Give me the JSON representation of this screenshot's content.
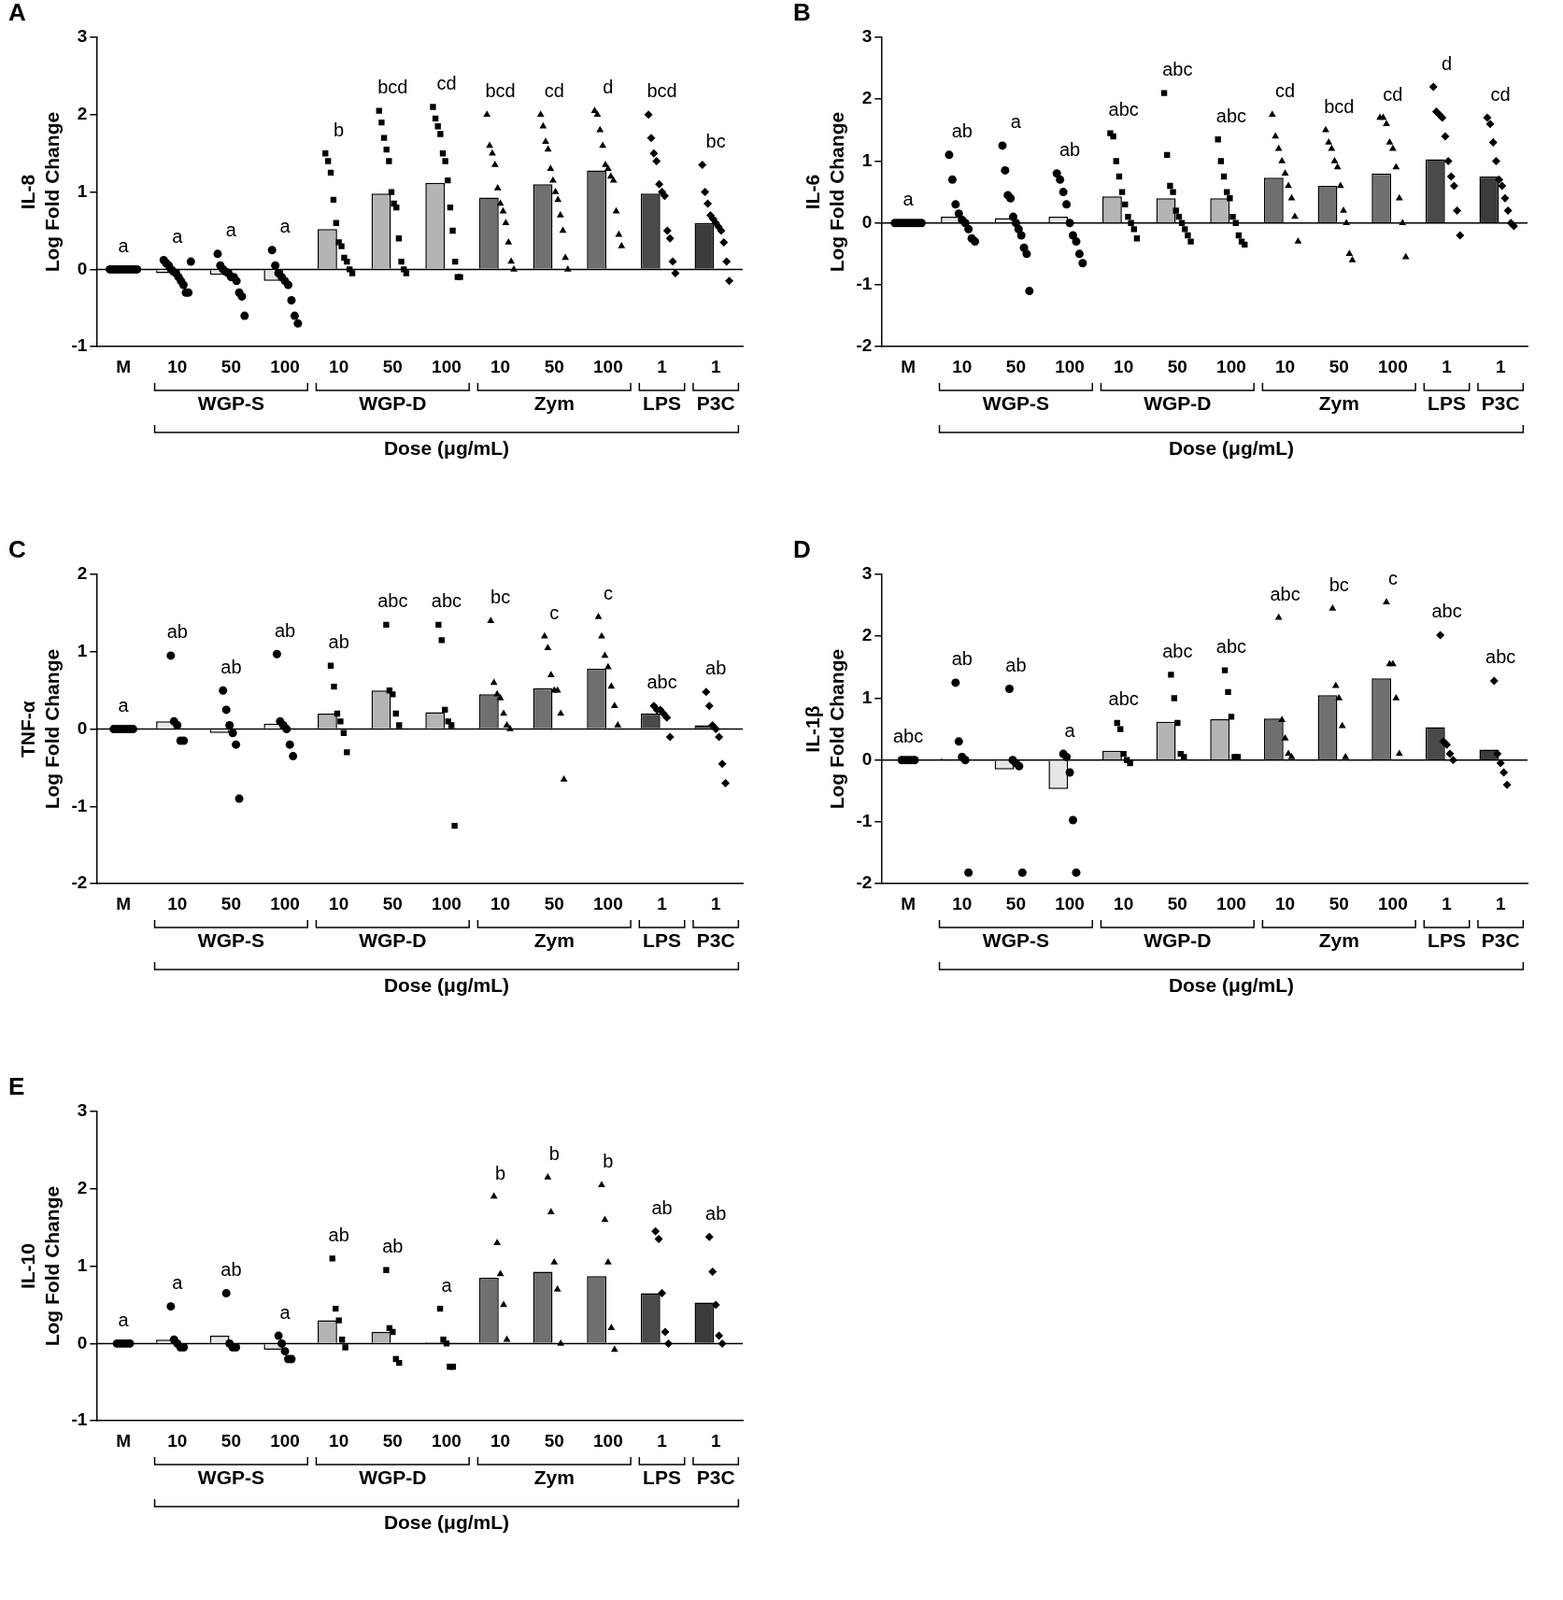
{
  "chart_data": [
    {
      "type": "bar",
      "panel": "A",
      "y_label": [
        "IL-8",
        "Log Fold Change"
      ],
      "x_label": "Dose (μg/mL)",
      "categories": [
        "M",
        "10",
        "50",
        "100",
        "10",
        "50",
        "100",
        "10",
        "50",
        "100",
        "1",
        "1"
      ],
      "groups": [
        null,
        "WGP-S",
        "WGP-S",
        "WGP-S",
        "WGP-D",
        "WGP-D",
        "WGP-D",
        "Zym",
        "Zym",
        "Zym",
        "LPS",
        "P3C"
      ],
      "values": [
        0,
        -0.05,
        -0.07,
        -0.15,
        0.52,
        0.98,
        1.12,
        0.93,
        1.1,
        1.28,
        0.98,
        0.6
      ],
      "points": [
        [
          0,
          0,
          0,
          0,
          0,
          0,
          0,
          0,
          0,
          0,
          0,
          0
        ],
        [
          0.12,
          0.08,
          0.05,
          0,
          -0.03,
          -0.05,
          -0.1,
          -0.15,
          -0.2,
          -0.3,
          -0.3,
          0.1
        ],
        [
          0.2,
          0.05,
          0,
          -0.03,
          -0.05,
          -0.1,
          -0.1,
          -0.15,
          -0.3,
          -0.35,
          -0.6
        ],
        [
          0.25,
          0.05,
          -0.05,
          -0.1,
          -0.15,
          -0.2,
          -0.4,
          -0.6,
          -0.7
        ],
        [
          1.5,
          1.4,
          1.25,
          0.9,
          0.6,
          0.35,
          0.3,
          0.15,
          0.1,
          0,
          -0.05
        ],
        [
          2.05,
          1.9,
          1.7,
          1.55,
          1.4,
          1.0,
          0.85,
          0.8,
          0.4,
          0.1,
          0,
          -0.05
        ],
        [
          2.1,
          1.95,
          1.85,
          1.75,
          1.5,
          1.4,
          1.15,
          0.8,
          0.5,
          0.1,
          -0.1,
          -0.1
        ],
        [
          2.0,
          1.6,
          1.5,
          1.35,
          1.05,
          0.85,
          0.75,
          0.6,
          0.35,
          0.1,
          0
        ],
        [
          2.0,
          1.85,
          1.65,
          1.55,
          1.3,
          1.15,
          1.0,
          0.9,
          0.7,
          0.5,
          0.15,
          0
        ],
        [
          2.05,
          2.0,
          1.8,
          1.6,
          1.35,
          1.3,
          1.2,
          1.15,
          0.75,
          0.45,
          0.3
        ],
        [
          2.0,
          1.7,
          1.5,
          1.4,
          1.1,
          1.0,
          0.95,
          0.5,
          0.4,
          0.1,
          -0.05
        ],
        [
          1.35,
          1.0,
          0.85,
          0.7,
          0.65,
          0.6,
          0.55,
          0.5,
          0.35,
          0.1,
          -0.15
        ]
      ],
      "letters": [
        "a",
        "a",
        "a",
        "a",
        "b",
        "bcd",
        "cd",
        "bcd",
        "cd",
        "d",
        "bcd",
        "bc"
      ],
      "colors": [
        "#ffffff",
        "#e6e6e6",
        "#e6e6e6",
        "#e6e6e6",
        "#b4b4b4",
        "#b4b4b4",
        "#b4b4b4",
        "#707070",
        "#707070",
        "#707070",
        "#4a4a4a",
        "#3c3c3c"
      ],
      "ylim": [
        -1,
        3
      ],
      "yticks": [
        -1,
        0,
        1,
        2,
        3
      ],
      "grid": false
    },
    {
      "type": "bar",
      "panel": "B",
      "y_label": [
        "IL-6",
        "Log Fold Change"
      ],
      "x_label": "Dose (μg/mL)",
      "categories": [
        "M",
        "10",
        "50",
        "100",
        "10",
        "50",
        "100",
        "10",
        "50",
        "100",
        "1",
        "1"
      ],
      "groups": [
        null,
        "WGP-S",
        "WGP-S",
        "WGP-S",
        "WGP-D",
        "WGP-D",
        "WGP-D",
        "Zym",
        "Zym",
        "Zym",
        "LPS",
        "P3C"
      ],
      "values": [
        0,
        0.1,
        0.08,
        0.1,
        0.43,
        0.4,
        0.4,
        0.73,
        0.6,
        0.8,
        1.03,
        0.75
      ],
      "points": [
        [
          0,
          0,
          0,
          0,
          0,
          0,
          0,
          0,
          0,
          0
        ],
        [
          1.1,
          0.7,
          0.3,
          0.15,
          0.05,
          0,
          -0.1,
          -0.25,
          -0.3
        ],
        [
          1.25,
          0.85,
          0.45,
          0.4,
          0.1,
          0,
          -0.1,
          -0.2,
          -0.4,
          -0.5,
          -1.1
        ],
        [
          0.8,
          0.7,
          0.5,
          0.3,
          0,
          -0.2,
          -0.3,
          -0.5,
          -0.65
        ],
        [
          1.45,
          1.4,
          1.0,
          0.75,
          0.5,
          0.3,
          0.1,
          0,
          -0.1,
          -0.25
        ],
        [
          2.1,
          1.1,
          0.6,
          0.5,
          0.2,
          0.1,
          0,
          -0.1,
          -0.2,
          -0.3
        ],
        [
          1.35,
          1.0,
          0.75,
          0.5,
          0.4,
          0.1,
          0,
          -0.2,
          -0.3,
          -0.35
        ],
        [
          1.75,
          1.4,
          1.2,
          1.0,
          0.8,
          0.6,
          0.4,
          0.1,
          -0.3
        ],
        [
          1.5,
          1.3,
          1.2,
          1.0,
          0.9,
          0.6,
          0.2,
          0,
          -0.5,
          -0.6
        ],
        [
          1.7,
          1.7,
          1.6,
          1.3,
          1.2,
          0.9,
          0.4,
          0,
          -0.55
        ],
        [
          2.2,
          1.8,
          1.75,
          1.7,
          1.4,
          1.0,
          0.75,
          0.6,
          0.2,
          -0.2
        ],
        [
          1.7,
          1.6,
          1.3,
          1.0,
          0.7,
          0.6,
          0.4,
          0.2,
          0,
          -0.05
        ]
      ],
      "letters": [
        "a",
        "ab",
        "a",
        "ab",
        "abc",
        "abc",
        "abc",
        "cd",
        "bcd",
        "cd",
        "d",
        "cd"
      ],
      "colors": [
        "#ffffff",
        "#e6e6e6",
        "#e6e6e6",
        "#e6e6e6",
        "#b4b4b4",
        "#b4b4b4",
        "#b4b4b4",
        "#707070",
        "#707070",
        "#707070",
        "#4a4a4a",
        "#3c3c3c"
      ],
      "ylim": [
        -2,
        3
      ],
      "yticks": [
        -2,
        -1,
        0,
        1,
        2,
        3
      ],
      "grid": false
    },
    {
      "type": "bar",
      "panel": "C",
      "y_label": [
        "TNF-α",
        "Log Fold Change"
      ],
      "x_label": "Dose (μg/mL)",
      "categories": [
        "M",
        "10",
        "50",
        "100",
        "10",
        "50",
        "100",
        "10",
        "50",
        "100",
        "1",
        "1"
      ],
      "groups": [
        null,
        "WGP-S",
        "WGP-S",
        "WGP-S",
        "WGP-D",
        "WGP-D",
        "WGP-D",
        "Zym",
        "Zym",
        "Zym",
        "LPS",
        "P3C"
      ],
      "values": [
        0,
        0.1,
        -0.05,
        0.07,
        0.2,
        0.5,
        0.22,
        0.45,
        0.53,
        0.78,
        0.2,
        0.05
      ],
      "points": [
        [
          0,
          0,
          0,
          0,
          0,
          0,
          0
        ],
        [
          0.95,
          0.1,
          0.05,
          -0.15,
          -0.15
        ],
        [
          0.5,
          0.25,
          0.05,
          -0.05,
          -0.2,
          -0.9
        ],
        [
          0.97,
          0.1,
          0.05,
          0,
          -0.2,
          -0.35
        ],
        [
          0.82,
          0.55,
          0.2,
          0.1,
          -0.05,
          -0.3
        ],
        [
          1.35,
          0.5,
          0.45,
          0.2,
          0.05
        ],
        [
          1.35,
          1.15,
          0.25,
          0.1,
          0.05,
          -1.25
        ],
        [
          1.4,
          0.6,
          0.45,
          0.4,
          0.2,
          0.05,
          0
        ],
        [
          1.2,
          1.05,
          0.7,
          0.5,
          0.5,
          0.2,
          -0.65
        ],
        [
          1.45,
          1.2,
          0.95,
          0.8,
          0.55,
          0.3,
          0.05
        ],
        [
          0.3,
          0.25,
          0.25,
          0.2,
          0.15,
          -0.1
        ],
        [
          0.48,
          0.3,
          0.05,
          0,
          -0.1,
          -0.45,
          -0.7
        ]
      ],
      "letters": [
        "a",
        "ab",
        "ab",
        "ab",
        "ab",
        "abc",
        "abc",
        "bc",
        "c",
        "c",
        "abc",
        "ab"
      ],
      "colors": [
        "#ffffff",
        "#e6e6e6",
        "#e6e6e6",
        "#e6e6e6",
        "#b4b4b4",
        "#b4b4b4",
        "#b4b4b4",
        "#707070",
        "#707070",
        "#707070",
        "#4a4a4a",
        "#3c3c3c"
      ],
      "ylim": [
        -2,
        2
      ],
      "yticks": [
        -2,
        -1,
        0,
        1,
        2
      ],
      "grid": false
    },
    {
      "type": "bar",
      "panel": "D",
      "y_label": [
        "IL-1β",
        "Log Fold Change"
      ],
      "x_label": "Dose (μg/mL)",
      "categories": [
        "M",
        "10",
        "50",
        "100",
        "10",
        "50",
        "100",
        "10",
        "50",
        "100",
        "1",
        "1"
      ],
      "groups": [
        null,
        "WGP-S",
        "WGP-S",
        "WGP-S",
        "WGP-D",
        "WGP-D",
        "WGP-D",
        "Zym",
        "Zym",
        "Zym",
        "LPS",
        "P3C"
      ],
      "values": [
        0,
        0.03,
        -0.15,
        -0.47,
        0.15,
        0.62,
        0.66,
        0.67,
        1.05,
        1.32,
        0.53,
        0.17
      ],
      "points": [
        [
          0,
          0,
          0,
          0,
          0
        ],
        [
          1.25,
          0.3,
          0.05,
          0,
          -1.82
        ],
        [
          1.15,
          0,
          -0.05,
          -0.1,
          -1.82
        ],
        [
          0.1,
          0.05,
          -0.2,
          -0.97,
          -1.82
        ],
        [
          0.6,
          0.5,
          0.1,
          0,
          -0.05
        ],
        [
          1.38,
          1.0,
          0.6,
          0.1,
          0.05
        ],
        [
          1.45,
          1.1,
          0.7,
          0.05,
          0.05
        ],
        [
          2.3,
          0.65,
          0.35,
          0.1,
          0.05
        ],
        [
          2.45,
          1.2,
          1.0,
          0.55,
          0.05
        ],
        [
          2.55,
          1.55,
          1.55,
          1.0,
          0.1
        ],
        [
          2.02,
          0.3,
          0.25,
          0.1,
          0
        ],
        [
          1.28,
          0.1,
          -0.05,
          -0.2,
          -0.4
        ]
      ],
      "letters": [
        "abc",
        "ab",
        "ab",
        "a",
        "abc",
        "abc",
        "abc",
        "abc",
        "bc",
        "c",
        "abc",
        "abc"
      ],
      "colors": [
        "#ffffff",
        "#e6e6e6",
        "#e6e6e6",
        "#e6e6e6",
        "#b4b4b4",
        "#b4b4b4",
        "#b4b4b4",
        "#707070",
        "#707070",
        "#707070",
        "#4a4a4a",
        "#3c3c3c"
      ],
      "ylim": [
        -2,
        3
      ],
      "yticks": [
        -2,
        -1,
        0,
        1,
        2,
        3
      ],
      "grid": false
    },
    {
      "type": "bar",
      "panel": "E",
      "y_label": [
        "IL-10",
        "Log Fold Change"
      ],
      "x_label": "Dose (μg/mL)",
      "categories": [
        "M",
        "10",
        "50",
        "100",
        "10",
        "50",
        "100",
        "10",
        "50",
        "100",
        "1",
        "1"
      ],
      "groups": [
        null,
        "WGP-S",
        "WGP-S",
        "WGP-S",
        "WGP-D",
        "WGP-D",
        "WGP-D",
        "Zym",
        "Zym",
        "Zym",
        "LPS",
        "P3C"
      ],
      "values": [
        0,
        0.05,
        0.1,
        -0.08,
        0.3,
        0.15,
        0.02,
        0.85,
        0.93,
        0.87,
        0.65,
        0.53
      ],
      "points": [
        [
          0,
          0,
          0,
          0,
          0
        ],
        [
          0.48,
          0.05,
          0,
          -0.05,
          -0.05
        ],
        [
          0.65,
          0,
          -0.05,
          -0.05
        ],
        [
          0.1,
          0,
          -0.1,
          -0.2,
          -0.2
        ],
        [
          1.1,
          0.45,
          0.3,
          0.05,
          -0.05
        ],
        [
          0.95,
          0.2,
          0.15,
          -0.2,
          -0.25
        ],
        [
          0.45,
          0.05,
          0,
          -0.3,
          -0.3
        ],
        [
          1.9,
          1.3,
          0.9,
          0.5,
          0.05
        ],
        [
          2.15,
          1.7,
          1.05,
          0.7,
          0
        ],
        [
          2.05,
          1.6,
          1.05,
          0.2,
          -0.08
        ],
        [
          1.45,
          1.35,
          0.65,
          0.15,
          0
        ],
        [
          1.38,
          0.93,
          0.5,
          0.1,
          0
        ]
      ],
      "letters": [
        "a",
        "a",
        "ab",
        "a",
        "ab",
        "ab",
        "a",
        "b",
        "b",
        "b",
        "ab",
        "ab"
      ],
      "colors": [
        "#ffffff",
        "#e6e6e6",
        "#e6e6e6",
        "#e6e6e6",
        "#b4b4b4",
        "#b4b4b4",
        "#b4b4b4",
        "#707070",
        "#707070",
        "#707070",
        "#4a4a4a",
        "#3c3c3c"
      ],
      "ylim": [
        -1,
        3
      ],
      "yticks": [
        -1,
        0,
        1,
        2,
        3
      ],
      "grid": false
    }
  ]
}
